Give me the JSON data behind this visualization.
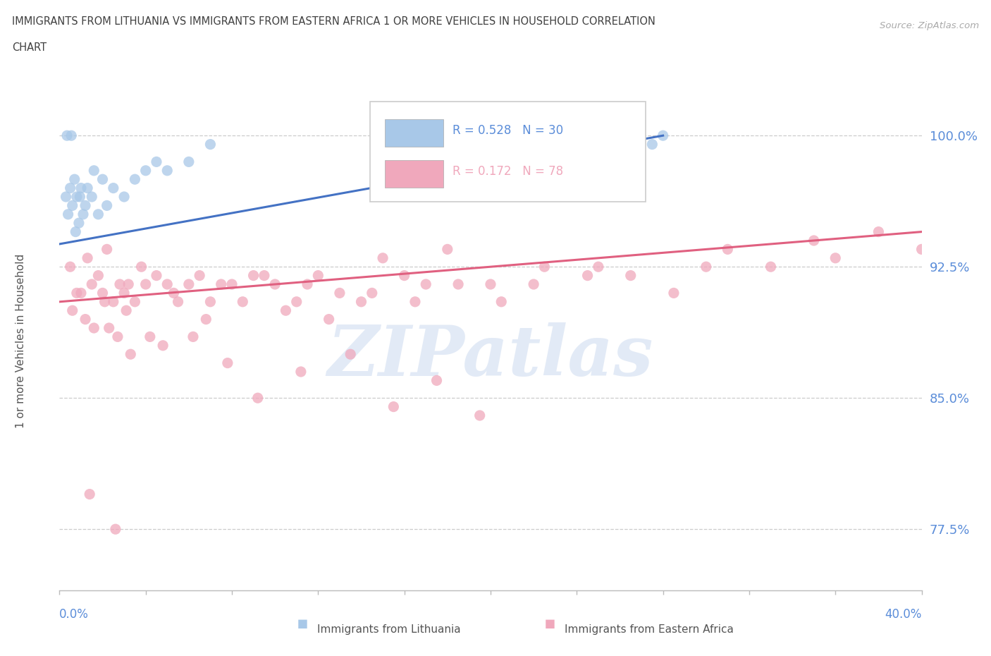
{
  "title_line1": "IMMIGRANTS FROM LITHUANIA VS IMMIGRANTS FROM EASTERN AFRICA 1 OR MORE VEHICLES IN HOUSEHOLD CORRELATION",
  "title_line2": "CHART",
  "source": "Source: ZipAtlas.com",
  "ylabel_ticks": [
    100.0,
    92.5,
    85.0,
    77.5
  ],
  "xmin": 0.0,
  "xmax": 40.0,
  "ymin": 74.0,
  "ymax": 102.5,
  "legend_r1": "R = 0.528",
  "legend_n1": "N = 30",
  "legend_r2": "R = 0.172",
  "legend_n2": "N = 78",
  "color_lithuania": "#a8c8e8",
  "color_eastern_africa": "#f0a8bc",
  "color_trendline_lithuania": "#4472c4",
  "color_trendline_eastern_africa": "#e06080",
  "color_axis_labels": "#5b8dd9",
  "color_title": "#404040",
  "color_source": "#aaaaaa",
  "color_watermark": "#d0ddf0",
  "lith_trendline_x0": 0.0,
  "lith_trendline_y0": 93.8,
  "lith_trendline_x1": 28.0,
  "lith_trendline_y1": 100.0,
  "east_trendline_x0": 0.0,
  "east_trendline_y0": 90.5,
  "east_trendline_x1": 40.0,
  "east_trendline_y1": 94.5,
  "lithuania_x": [
    0.3,
    0.4,
    0.5,
    0.6,
    0.7,
    0.8,
    0.9,
    1.0,
    1.1,
    1.2,
    1.3,
    1.5,
    1.6,
    1.8,
    2.0,
    2.2,
    2.5,
    3.0,
    3.5,
    4.0,
    4.5,
    5.0,
    6.0,
    7.0,
    0.35,
    0.55,
    0.75,
    0.95,
    27.5,
    28.0
  ],
  "lithuania_y": [
    96.5,
    95.5,
    97.0,
    96.0,
    97.5,
    96.5,
    95.0,
    97.0,
    95.5,
    96.0,
    97.0,
    96.5,
    98.0,
    95.5,
    97.5,
    96.0,
    97.0,
    96.5,
    97.5,
    98.0,
    98.5,
    98.0,
    98.5,
    99.5,
    100.0,
    100.0,
    94.5,
    96.5,
    99.5,
    100.0
  ],
  "eastern_africa_x": [
    0.5,
    1.0,
    1.3,
    1.5,
    1.8,
    2.0,
    2.2,
    2.5,
    2.8,
    3.0,
    3.2,
    3.5,
    3.8,
    4.0,
    4.5,
    5.0,
    5.5,
    6.0,
    6.5,
    7.0,
    8.0,
    9.0,
    10.0,
    11.0,
    12.0,
    13.0,
    14.0,
    15.0,
    16.0,
    17.0,
    18.0,
    20.0,
    22.0,
    25.0,
    30.0,
    35.0,
    2.3,
    3.1,
    4.2,
    5.3,
    6.8,
    7.5,
    8.5,
    9.5,
    10.5,
    11.5,
    12.5,
    14.5,
    16.5,
    18.5,
    20.5,
    22.5,
    26.5,
    0.8,
    1.2,
    1.6,
    2.1,
    2.7,
    3.3,
    4.8,
    6.2,
    7.8,
    9.2,
    11.2,
    13.5,
    15.5,
    17.5,
    19.5,
    24.5,
    28.5,
    31.0,
    33.0,
    36.0,
    38.0,
    40.0,
    0.6,
    1.4,
    2.6
  ],
  "eastern_africa_y": [
    92.5,
    91.0,
    93.0,
    91.5,
    92.0,
    91.0,
    93.5,
    90.5,
    91.5,
    91.0,
    91.5,
    90.5,
    92.5,
    91.5,
    92.0,
    91.5,
    90.5,
    91.5,
    92.0,
    90.5,
    91.5,
    92.0,
    91.5,
    90.5,
    92.0,
    91.0,
    90.5,
    93.0,
    92.0,
    91.5,
    93.5,
    91.5,
    91.5,
    92.5,
    92.5,
    94.0,
    89.0,
    90.0,
    88.5,
    91.0,
    89.5,
    91.5,
    90.5,
    92.0,
    90.0,
    91.5,
    89.5,
    91.0,
    90.5,
    91.5,
    90.5,
    92.5,
    92.0,
    91.0,
    89.5,
    89.0,
    90.5,
    88.5,
    87.5,
    88.0,
    88.5,
    87.0,
    85.0,
    86.5,
    87.5,
    84.5,
    86.0,
    84.0,
    92.0,
    91.0,
    93.5,
    92.5,
    93.0,
    94.5,
    93.5,
    90.0,
    79.5,
    77.5
  ]
}
